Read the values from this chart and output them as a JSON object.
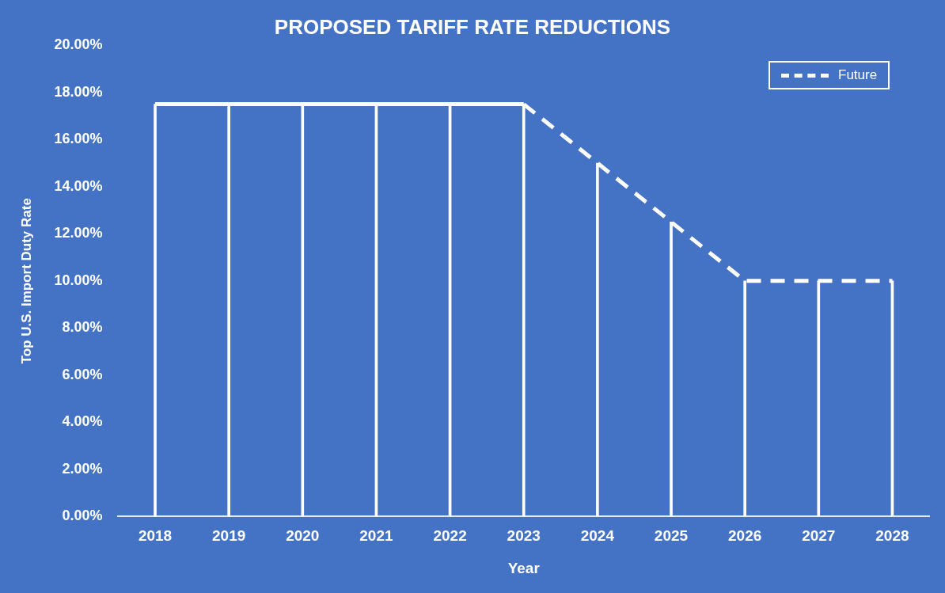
{
  "chart_data": {
    "type": "bar",
    "title": "PROPOSED TARIFF RATE REDUCTIONS",
    "xlabel": "Year",
    "ylabel": "Top U.S. Import Duty Rate",
    "categories": [
      "2018",
      "2019",
      "2020",
      "2021",
      "2022",
      "2023",
      "2024",
      "2025",
      "2026",
      "2027",
      "2028"
    ],
    "series": [
      {
        "color": "#ffffff",
        "values": [
          17.5,
          17.5,
          17.5,
          17.5,
          17.5,
          17.5,
          15,
          12.5,
          10,
          10,
          10
        ]
      },
      {
        "type": "line",
        "color": "#ffffff",
        "line_style": "solid",
        "values": [
          17.5,
          17.5,
          17.5,
          17.5,
          17.5,
          17.5,
          null,
          null,
          null,
          null,
          null
        ]
      },
      {
        "type": "line",
        "name": "Future",
        "color": "#ffffff",
        "line_style": "dashed",
        "values": [
          null,
          null,
          null,
          null,
          null,
          17.5,
          15,
          12.5,
          10,
          10,
          10
        ]
      }
    ],
    "ylim": [
      0,
      20
    ],
    "yticks": [
      {
        "value": 0,
        "label": "0.00%"
      },
      {
        "value": 2,
        "label": "2.00%"
      },
      {
        "value": 4,
        "label": "4.00%"
      },
      {
        "value": 6,
        "label": "6.00%"
      },
      {
        "value": 8,
        "label": "8.00%"
      },
      {
        "value": 10,
        "label": "10.00%"
      },
      {
        "value": 12,
        "label": "12.00%"
      },
      {
        "value": 14,
        "label": "14.00%"
      },
      {
        "value": 16,
        "label": "16.00%"
      },
      {
        "value": 18,
        "label": "18.00%"
      },
      {
        "value": 20,
        "label": "20.00%"
      }
    ],
    "grid": false,
    "legend": "top right",
    "marker": "none"
  }
}
